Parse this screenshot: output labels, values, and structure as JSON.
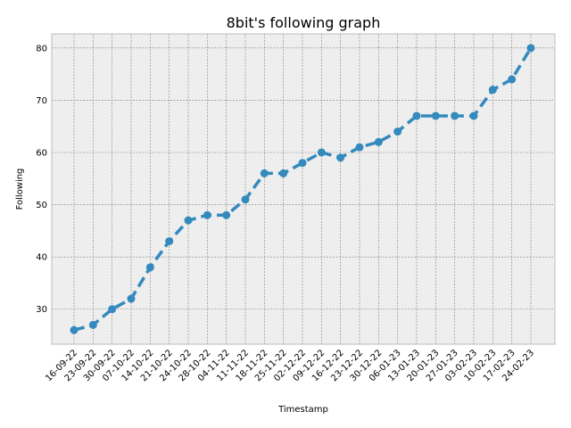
{
  "chart_data": {
    "type": "line",
    "title": "8bit's following graph",
    "xlabel": "Timestamp",
    "ylabel": "Following",
    "categories": [
      "16-09-22",
      "23-09-22",
      "30-09-22",
      "07-10-22",
      "14-10-22",
      "21-10-22",
      "24-10-22",
      "28-10-22",
      "04-11-22",
      "11-11-22",
      "18-11-22",
      "25-11-22",
      "02-12-22",
      "09-12-22",
      "16-12-22",
      "23-12-22",
      "30-12-22",
      "06-01-23",
      "13-01-23",
      "20-01-23",
      "27-01-23",
      "03-02-23",
      "10-02-23",
      "17-02-23",
      "24-02-23"
    ],
    "series": [
      {
        "values": [
          26,
          27,
          30,
          32,
          38,
          43,
          47,
          48,
          48,
          51,
          56,
          56,
          58,
          60,
          59,
          61,
          62,
          64,
          67,
          67,
          67,
          67,
          72,
          74,
          80
        ]
      }
    ],
    "yticks": [
      30,
      40,
      50,
      60,
      70,
      80
    ],
    "ylim": [
      23.3,
      82.7
    ],
    "grid": true,
    "line_style": "dashed",
    "marker": "circle",
    "colors": {
      "line": "#348ABD",
      "background": "#EEEEEE"
    }
  }
}
